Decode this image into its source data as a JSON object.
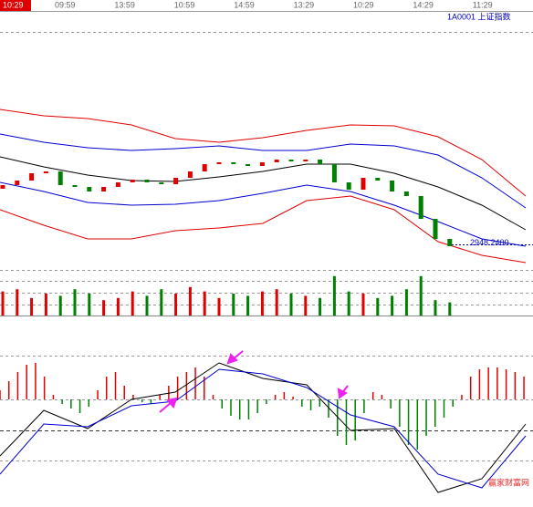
{
  "header": {
    "time": "10:29",
    "symbol": "1A0001  上证指数"
  },
  "time_labels": [
    "09:59",
    "13:59",
    "10:59",
    "14:59",
    "13:29",
    "10:29",
    "14:29",
    "11:29"
  ],
  "watermark": "赢家财富网",
  "chart_data": [
    {
      "type": "candlestick",
      "ylim": [
        2935,
        3065
      ],
      "up_color": "#e00000",
      "down_color": "#008000",
      "open": [
        2979,
        2981,
        2983.5,
        2987.5,
        2988.5,
        2981,
        2980,
        2977.5,
        2980,
        2982.5,
        2984,
        2982.5,
        2981.5,
        2985,
        2988.5,
        2992.5,
        2993.5,
        2992.5,
        2991.5,
        2993.5,
        2995,
        2994,
        2995,
        2992.5,
        2982.5,
        2978.5,
        2985,
        2983.5,
        2977.5,
        2975,
        2962.5,
        2951.5
      ],
      "close": [
        2981,
        2983.5,
        2987.5,
        2988.5,
        2981,
        2980,
        2977.5,
        2980,
        2982.5,
        2984,
        2982.5,
        2981.5,
        2985,
        2988.5,
        2992.5,
        2993.5,
        2992.5,
        2991.5,
        2993.5,
        2995,
        2994,
        2995,
        2992.5,
        2982.5,
        2978.5,
        2985,
        2983.5,
        2977.5,
        2975,
        2962.5,
        2951.5,
        2947.5
      ],
      "series": [
        {
          "color": "#e00000",
          "values": [
            3022.5,
            3019,
            3017.5,
            3014,
            3006.5,
            3004.5,
            3007,
            3011,
            3014,
            3013.5,
            3007.5,
            2995,
            2975
          ]
        },
        {
          "color": "#0000d0",
          "values": [
            3009,
            3004.5,
            3001.5,
            3000,
            3001,
            3002.5,
            3000,
            3000,
            3003.5,
            3002.5,
            2997.5,
            2985,
            2968.5
          ]
        },
        {
          "color": "#000000",
          "values": [
            2996.5,
            2991,
            2986.5,
            2983.5,
            2983,
            2985.5,
            2988.5,
            2992.5,
            2992.5,
            2987.5,
            2980,
            2970,
            2956.5
          ]
        },
        {
          "color": "#0000d0",
          "values": [
            2982.5,
            2977.5,
            2971.5,
            2970,
            2970.5,
            2972.5,
            2976.5,
            2981,
            2977.5,
            2970,
            2961,
            2951.5,
            2947.5
          ]
        },
        {
          "color": "#e00000",
          "values": [
            2967.5,
            2959,
            2951.5,
            2951.5,
            2956,
            2957.5,
            2960,
            2972.5,
            2975,
            2967.5,
            2950,
            2942.5,
            2938.5
          ]
        }
      ],
      "last_price": {
        "value": 2948.24,
        "label": "2948.2400"
      }
    },
    {
      "type": "volume",
      "ylim": [
        0,
        100
      ],
      "values": [
        55,
        60,
        40,
        50,
        45,
        60,
        50,
        35,
        40,
        55,
        45,
        60,
        50,
        65,
        55,
        40,
        50,
        45,
        55,
        60,
        50,
        45,
        40,
        90,
        55,
        50,
        40,
        45,
        60,
        90,
        35,
        30
      ]
    },
    {
      "type": "macd",
      "ylim": [
        -118,
        100
      ],
      "up_color": "#e00000",
      "down_color": "#008000",
      "values": [
        10,
        20,
        30,
        38,
        40,
        25,
        5,
        -5,
        -10,
        -15,
        -8,
        10,
        25,
        30,
        15,
        5,
        -3,
        -5,
        5,
        15,
        25,
        30,
        35,
        25,
        5,
        -10,
        -18,
        -22,
        -22,
        -15,
        -5,
        5,
        8,
        3,
        -8,
        -12,
        -8,
        -20,
        -40,
        -50,
        -45,
        -15,
        8,
        5,
        -10,
        -30,
        -50,
        -55,
        -40,
        -30,
        -20,
        -8,
        5,
        25,
        33,
        35,
        35,
        33,
        30,
        25
      ],
      "series": [
        {
          "color": "#000000",
          "values": [
            -62,
            -12,
            -32,
            0,
            8,
            40,
            23,
            16,
            -34,
            -32,
            -102,
            -87,
            -27
          ]
        },
        {
          "color": "#0000d0",
          "values": [
            -82,
            -27,
            -30,
            -7,
            -2,
            33,
            28,
            13,
            -17,
            -30,
            -82,
            -97,
            -40
          ]
        }
      ]
    }
  ]
}
